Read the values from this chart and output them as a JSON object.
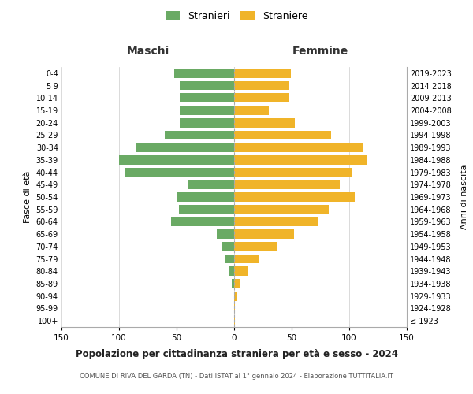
{
  "age_groups": [
    "100+",
    "95-99",
    "90-94",
    "85-89",
    "80-84",
    "75-79",
    "70-74",
    "65-69",
    "60-64",
    "55-59",
    "50-54",
    "45-49",
    "40-44",
    "35-39",
    "30-34",
    "25-29",
    "20-24",
    "15-19",
    "10-14",
    "5-9",
    "0-4"
  ],
  "birth_years": [
    "≤ 1923",
    "1924-1928",
    "1929-1933",
    "1934-1938",
    "1939-1943",
    "1944-1948",
    "1949-1953",
    "1954-1958",
    "1959-1963",
    "1964-1968",
    "1969-1973",
    "1974-1978",
    "1979-1983",
    "1984-1988",
    "1989-1993",
    "1994-1998",
    "1999-2003",
    "2004-2008",
    "2009-2013",
    "2014-2018",
    "2019-2023"
  ],
  "males": [
    0,
    0,
    0,
    2,
    5,
    8,
    10,
    15,
    55,
    48,
    50,
    40,
    95,
    100,
    85,
    60,
    47,
    47,
    47,
    47,
    52
  ],
  "females": [
    1,
    1,
    2,
    5,
    12,
    22,
    38,
    52,
    73,
    82,
    105,
    92,
    103,
    115,
    112,
    84,
    53,
    30,
    48,
    48,
    49
  ],
  "male_color": "#6aaa64",
  "female_color": "#f0b429",
  "background_color": "#ffffff",
  "grid_color": "#cccccc",
  "title": "Popolazione per cittadinanza straniera per età e sesso - 2024",
  "subtitle": "COMUNE DI RIVA DEL GARDA (TN) - Dati ISTAT al 1° gennaio 2024 - Elaborazione TUTTITALIA.IT",
  "header_left": "Maschi",
  "header_right": "Femmine",
  "ylabel_left": "Fasce di età",
  "ylabel_right": "Anni di nascita",
  "legend_male": "Stranieri",
  "legend_female": "Straniere",
  "xlim": 150,
  "bar_height": 0.75
}
